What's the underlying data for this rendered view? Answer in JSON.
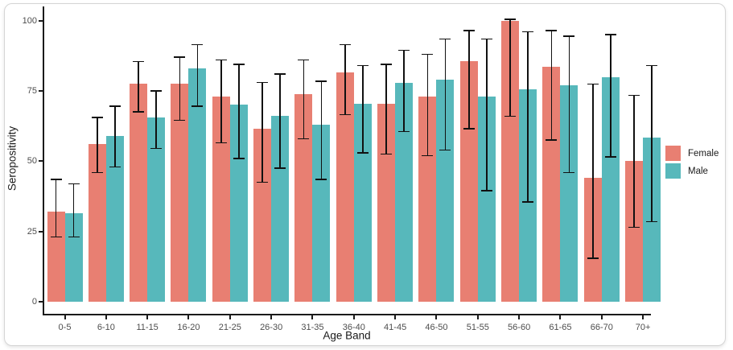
{
  "chart_data": {
    "type": "bar",
    "title": "",
    "xlabel": "Age Band",
    "ylabel": "Seropositivity",
    "ylim": [
      0,
      105
    ],
    "yticks": [
      0,
      25,
      50,
      75,
      100
    ],
    "grid": false,
    "legend_position": "right",
    "error_bars": true,
    "error_bar_color": "#111111",
    "categories": [
      "0-5",
      "6-10",
      "11-15",
      "16-20",
      "21-25",
      "26-30",
      "31-35",
      "36-40",
      "41-45",
      "46-50",
      "51-55",
      "56-60",
      "61-65",
      "66-70",
      "70+"
    ],
    "series": [
      {
        "name": "Female",
        "color": "#E87F72",
        "values": [
          32,
          56,
          77.5,
          77.5,
          73,
          61.5,
          74,
          81.5,
          70.5,
          73,
          85.5,
          100,
          83.5,
          44,
          50
        ],
        "ci_low": [
          23,
          46,
          67.5,
          64.5,
          56.5,
          42.5,
          58,
          66.5,
          52.5,
          52,
          61.5,
          66,
          57.5,
          15.5,
          26.5
        ],
        "ci_high": [
          43.5,
          65.5,
          85.5,
          87,
          86,
          78,
          86,
          91.5,
          84.5,
          88,
          96.5,
          100.5,
          96.5,
          77.5,
          73.5
        ]
      },
      {
        "name": "Male",
        "color": "#57B8BB",
        "values": [
          31.5,
          59,
          65.5,
          83,
          70,
          66,
          63,
          70.5,
          78,
          79,
          73,
          75.5,
          77,
          80,
          58.5
        ],
        "ci_low": [
          23,
          48,
          54.5,
          69.5,
          51,
          47.5,
          43.5,
          53,
          60.5,
          54,
          39.5,
          35.5,
          46,
          51.5,
          28.5
        ],
        "ci_high": [
          42,
          69.5,
          75,
          91.5,
          84.5,
          81,
          78.5,
          84,
          89.5,
          93.5,
          93.5,
          96,
          94.5,
          95,
          84
        ]
      }
    ]
  }
}
